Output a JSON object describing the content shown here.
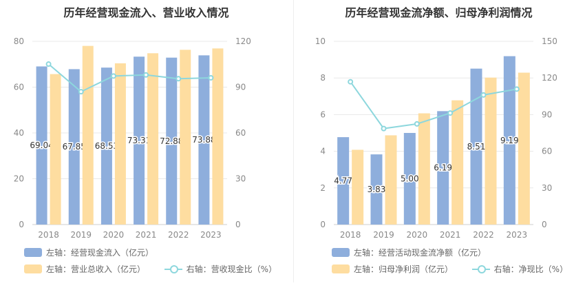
{
  "chart_data": [
    {
      "type": "bar",
      "title": "历年经营现金流入、营业收入情况",
      "categories": [
        "2018",
        "2019",
        "2020",
        "2021",
        "2022",
        "2023"
      ],
      "left_axis": {
        "ticks": [
          "0",
          "20",
          "40",
          "60",
          "80"
        ],
        "min": 0,
        "max": 80
      },
      "right_axis": {
        "ticks": [
          "0",
          "30",
          "60",
          "90",
          "120"
        ],
        "min": 0,
        "max": 120
      },
      "series": [
        {
          "name": "左轴：经营现金流入（亿元）",
          "kind": "bar",
          "axis": "left",
          "color": "#8EAEDC",
          "values": [
            69.04,
            67.85,
            68.53,
            73.31,
            72.88,
            73.88
          ],
          "labels": [
            "69.04",
            "67.85",
            "68.53",
            "73.31",
            "72.88",
            "73.88"
          ]
        },
        {
          "name": "左轴：营业总收入（亿元）",
          "kind": "bar",
          "axis": "left",
          "color": "#FEDDA0",
          "values": [
            65.7,
            78.0,
            70.4,
            74.8,
            76.3,
            76.9
          ]
        },
        {
          "name": "右轴：营收现金比（%）",
          "kind": "line",
          "axis": "right",
          "color": "#8DD7DD",
          "values": [
            105.1,
            87.0,
            97.3,
            98.0,
            95.5,
            96.1
          ]
        }
      ],
      "grid": true,
      "legend_position": "bottom-left"
    },
    {
      "type": "bar",
      "title": "历年经营现金流净额、归母净利润情况",
      "categories": [
        "2018",
        "2019",
        "2020",
        "2021",
        "2022",
        "2023"
      ],
      "left_axis": {
        "ticks": [
          "0",
          "2",
          "4",
          "6",
          "8",
          "10"
        ],
        "min": 0,
        "max": 10
      },
      "right_axis": {
        "ticks": [
          "0",
          "30",
          "60",
          "90",
          "120",
          "150"
        ],
        "min": 0,
        "max": 150
      },
      "series": [
        {
          "name": "左轴：经营活动现金流净额（亿元）",
          "kind": "bar",
          "axis": "left",
          "color": "#8EAEDC",
          "values": [
            4.77,
            3.83,
            5.0,
            6.19,
            8.51,
            9.19
          ],
          "labels": [
            "4.77",
            "3.83",
            "5.00",
            "6.19",
            "8.51",
            "9.19"
          ]
        },
        {
          "name": "左轴：归母净利润（亿元）",
          "kind": "bar",
          "axis": "left",
          "color": "#FEDDA0",
          "values": [
            4.08,
            4.87,
            6.07,
            6.78,
            8.02,
            8.29
          ]
        },
        {
          "name": "右轴：净现比（%）",
          "kind": "line",
          "axis": "right",
          "color": "#8DD7DD",
          "values": [
            116.9,
            78.6,
            82.4,
            91.3,
            106.1,
            110.9
          ]
        }
      ],
      "grid": true,
      "legend_position": "bottom-left"
    }
  ]
}
